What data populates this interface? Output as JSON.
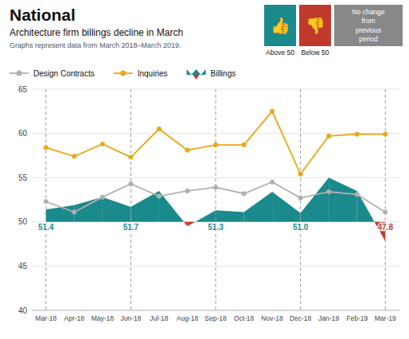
{
  "chart_data": {
    "type": "line",
    "title": "National",
    "subtitle": "Architecture firm billings decline in March",
    "note": "Graphs represent data from March 2018–March 2019.",
    "categories": [
      "Mar-18",
      "Apr-18",
      "May-18",
      "Jun-18",
      "Jul-18",
      "Aug-18",
      "Sep-18",
      "Oct-18",
      "Nov-18",
      "Dec-18",
      "Jan-19",
      "Feb-19",
      "Mar-19"
    ],
    "series": [
      {
        "name": "Design Contracts",
        "type": "line",
        "color": "#b0b0b0",
        "marker": "circle",
        "values": [
          52.3,
          51.1,
          52.8,
          54.3,
          52.9,
          53.5,
          53.9,
          53.2,
          54.5,
          52.7,
          53.4,
          53.1,
          51.1
        ]
      },
      {
        "name": "Inquiries",
        "type": "line",
        "color": "#e6a817",
        "marker": "circle",
        "values": [
          58.4,
          57.4,
          58.8,
          57.3,
          60.5,
          58.1,
          58.7,
          58.7,
          62.5,
          55.4,
          59.7,
          59.9,
          59.9
        ]
      },
      {
        "name": "Billings",
        "type": "area",
        "baseline": 50,
        "values": [
          51.4,
          51.9,
          52.8,
          51.7,
          53.5,
          49.5,
          51.3,
          51.1,
          53.4,
          51.0,
          55.0,
          53.5,
          47.8
        ],
        "value_labels": [
          "51.4",
          null,
          null,
          "51.7",
          null,
          null,
          "51.3",
          null,
          null,
          "51.0",
          null,
          null,
          "47.8"
        ],
        "colors": [
          "#1a8a8c",
          "#1a8a8c",
          "#1a8a8c",
          "#1a8a8c",
          "#1a8a8c",
          "#c0392b",
          "#1a8a8c",
          "#1a8a8c",
          "#1a8a8c",
          "#1a8a8c",
          "#1a8a8c",
          "#1a8a8c",
          "#c0392b"
        ]
      }
    ],
    "ylim": [
      40,
      65
    ],
    "yticks": [
      40,
      45,
      50,
      55,
      60,
      65
    ],
    "grid": true,
    "annotations": [
      {
        "text": "👍",
        "label": "Above 50",
        "color": "#1a8a8c"
      },
      {
        "text": "👎",
        "label": "Below 50",
        "color": "#c0392b"
      },
      {
        "text": "No change\nfrom\nprevious\nperiod",
        "color": "#888888"
      }
    ]
  }
}
